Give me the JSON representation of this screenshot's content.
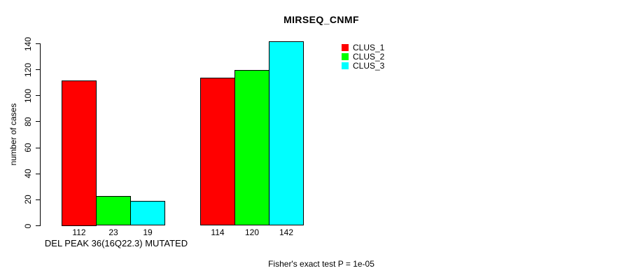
{
  "title": "MIRSEQ_CNMF",
  "colors": {
    "background": "#FFFFFF",
    "axis": "#000000",
    "clus1": "#FF0000",
    "clus2": "#00FF00",
    "clus3": "#00FFFF"
  },
  "chart_data": {
    "type": "bar",
    "title": "MIRSEQ_CNMF",
    "xlabel": "",
    "ylabel": "number of cases",
    "ylim": [
      0,
      140
    ],
    "y_ticks": [
      0,
      20,
      40,
      60,
      80,
      100,
      120,
      140
    ],
    "categories": [
      "DEL PEAK 36(16Q22.3) MUTATED",
      ""
    ],
    "series": [
      {
        "name": "CLUS_1",
        "color": "#FF0000",
        "values": [
          112,
          114
        ]
      },
      {
        "name": "CLUS_2",
        "color": "#00FF00",
        "values": [
          23,
          120
        ]
      },
      {
        "name": "CLUS_3",
        "color": "#00FFFF",
        "values": [
          19,
          142
        ]
      }
    ],
    "bar_value_labels": true,
    "legend_position": "top-right",
    "grid": false,
    "annotation": "Fisher's exact test P = 1e-05"
  }
}
